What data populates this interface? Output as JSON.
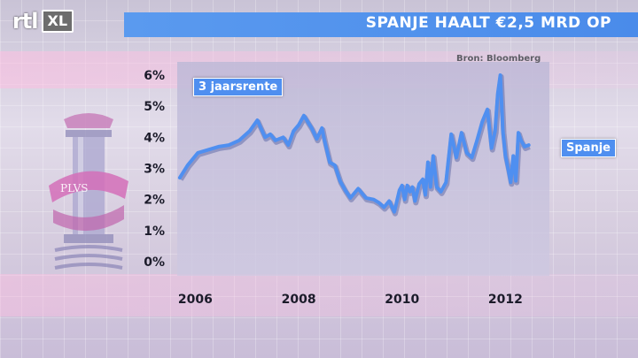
{
  "brand": {
    "rtl": "rtl",
    "xl": "XL"
  },
  "header": {
    "title": "SPANJE HAALT €2,5 MRD OP"
  },
  "emblem": {
    "motto": "PLVS"
  },
  "source": "Bron: Bloomberg",
  "colors": {
    "accent": "#4f8ff0",
    "header_bar": "#4a8bea"
  },
  "chart_data": {
    "type": "line",
    "title": "SPANJE HAALT €2,5 MRD OP",
    "annotation": "3 jaarsrente",
    "xlabel": "",
    "ylabel": "",
    "x_ticks": [
      "2006",
      "2008",
      "2010",
      "2012"
    ],
    "y_ticks": [
      "0%",
      "1%",
      "2%",
      "3%",
      "4%",
      "5%",
      "6%"
    ],
    "ylim": [
      0,
      6.2
    ],
    "xlim": [
      2005.7,
      2012.9
    ],
    "grid": false,
    "series": [
      {
        "name": "Spanje",
        "x": [
          2005.75,
          2005.9,
          2006.1,
          2006.3,
          2006.5,
          2006.7,
          2006.9,
          2007.1,
          2007.25,
          2007.4,
          2007.5,
          2007.6,
          2007.75,
          2007.85,
          2007.95,
          2008.05,
          2008.15,
          2008.3,
          2008.4,
          2008.5,
          2008.55,
          2008.65,
          2008.75,
          2008.85,
          2008.95,
          2009.05,
          2009.2,
          2009.35,
          2009.5,
          2009.6,
          2009.7,
          2009.8,
          2009.9,
          2010.0,
          2010.05,
          2010.1,
          2010.15,
          2010.2,
          2010.25,
          2010.3,
          2010.38,
          2010.45,
          2010.5,
          2010.55,
          2010.6,
          2010.65,
          2010.72,
          2010.8,
          2010.9,
          2011.0,
          2011.1,
          2011.2,
          2011.3,
          2011.4,
          2011.5,
          2011.6,
          2011.7,
          2011.78,
          2011.85,
          2011.9,
          2011.95,
          2012.0,
          2012.05,
          2012.1,
          2012.15,
          2012.2,
          2012.25,
          2012.3,
          2012.35,
          2012.42,
          2012.5
        ],
        "values": [
          2.7,
          3.1,
          3.5,
          3.6,
          3.7,
          3.75,
          3.9,
          4.2,
          4.55,
          4.0,
          4.1,
          3.9,
          4.0,
          3.75,
          4.2,
          4.4,
          4.7,
          4.3,
          3.95,
          4.3,
          3.9,
          3.2,
          3.1,
          2.6,
          2.3,
          2.05,
          2.35,
          2.05,
          2.0,
          1.9,
          1.75,
          1.95,
          1.6,
          2.3,
          2.45,
          2.0,
          2.45,
          2.25,
          2.4,
          1.95,
          2.5,
          2.65,
          2.15,
          3.2,
          2.4,
          3.4,
          2.4,
          2.25,
          2.55,
          4.1,
          3.35,
          4.15,
          3.5,
          3.35,
          3.9,
          4.5,
          4.9,
          3.65,
          4.2,
          5.4,
          6.0,
          4.2,
          3.4,
          3.0,
          2.55,
          3.4,
          2.6,
          4.15,
          3.9,
          3.7,
          3.75
        ]
      }
    ]
  }
}
